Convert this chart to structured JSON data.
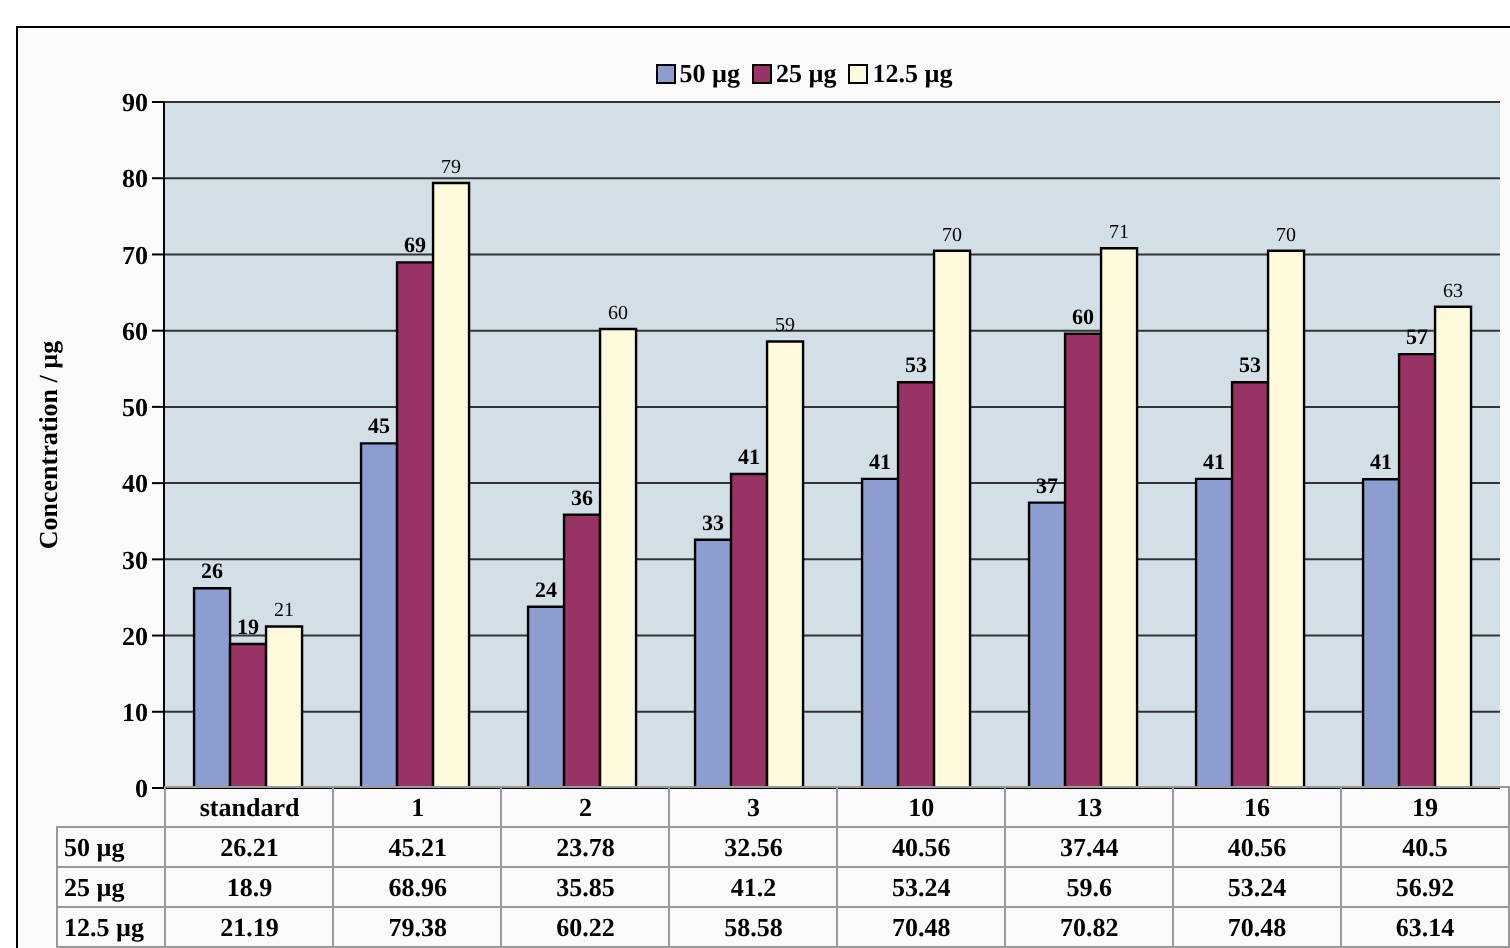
{
  "chart_data": {
    "type": "bar",
    "ylabel": "Concentration / µg",
    "categories": [
      "standard",
      "1",
      "2",
      "3",
      "10",
      "13",
      "16",
      "19"
    ],
    "series": [
      {
        "name": "50 µg",
        "color": "#8c9ed0",
        "values": [
          26.21,
          45.21,
          23.78,
          32.56,
          40.56,
          37.44,
          40.56,
          40.5
        ]
      },
      {
        "name": "25 µg",
        "color": "#993366",
        "values": [
          18.9,
          68.96,
          35.85,
          41.2,
          53.24,
          59.6,
          53.24,
          56.92
        ]
      },
      {
        "name": "12.5 µg",
        "color": "#fffadc",
        "values": [
          21.19,
          79.38,
          60.22,
          58.58,
          70.48,
          70.82,
          70.48,
          63.14
        ]
      }
    ],
    "annotations": [
      "26",
      "19",
      "21",
      "45",
      "69",
      "79",
      "24",
      "36",
      "60",
      "33",
      "41",
      "59",
      "41",
      "53",
      "70",
      "37",
      "60",
      "71",
      "41",
      "53",
      "70",
      "41",
      "57",
      "63"
    ],
    "ylim": [
      0,
      90
    ],
    "yticks": [
      0,
      10,
      20,
      30,
      40,
      50,
      60,
      70,
      80,
      90
    ],
    "grid": "y",
    "legend": "top",
    "data_labels": true
  }
}
